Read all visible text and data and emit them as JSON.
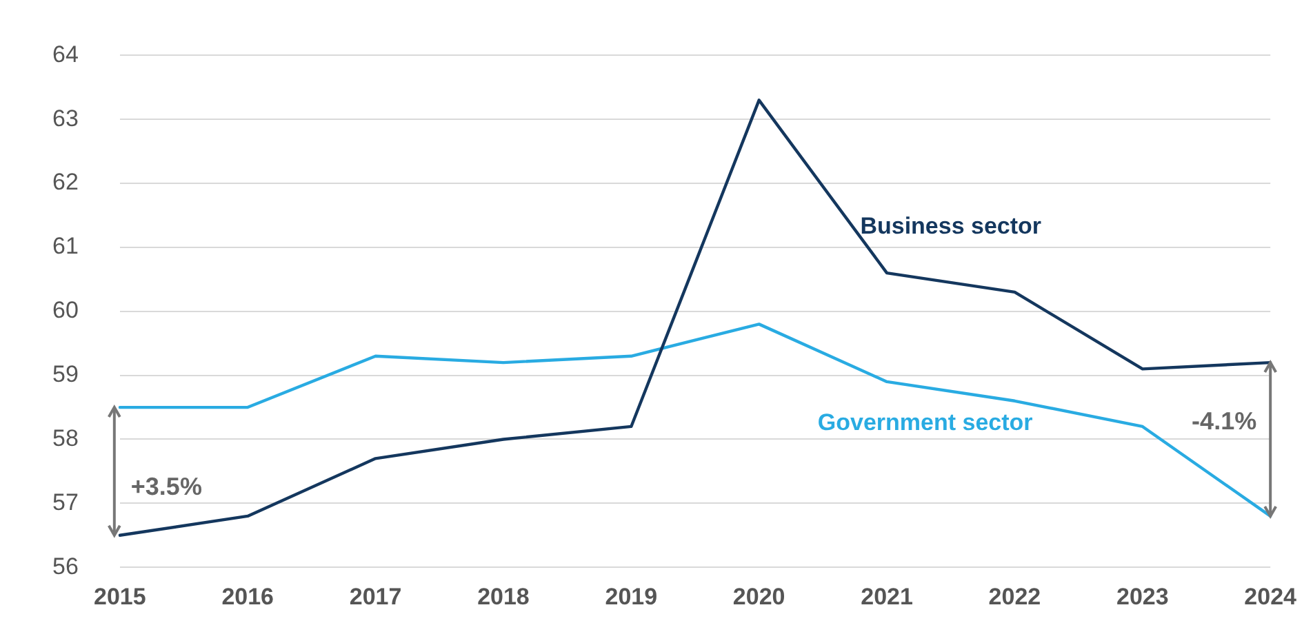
{
  "chart_data": {
    "type": "line",
    "categories": [
      "2015",
      "2016",
      "2017",
      "2018",
      "2019",
      "2020",
      "2021",
      "2022",
      "2023",
      "2024"
    ],
    "series": [
      {
        "name": "Business sector",
        "color": "#14375e",
        "values": [
          56.5,
          56.8,
          57.7,
          58.0,
          58.2,
          63.3,
          60.6,
          60.3,
          59.1,
          59.2
        ]
      },
      {
        "name": "Government sector",
        "color": "#29abe2",
        "values": [
          58.5,
          58.5,
          59.3,
          59.2,
          59.3,
          59.8,
          58.9,
          58.6,
          58.2,
          56.8
        ]
      }
    ],
    "ylim": [
      56,
      64
    ],
    "yticks": [
      56,
      57,
      58,
      59,
      60,
      61,
      62,
      63,
      64
    ],
    "grid": "y",
    "legend": false,
    "marker": "none",
    "line_style": "solid",
    "annotations": [
      "+3.5%",
      "-4.1%"
    ]
  }
}
